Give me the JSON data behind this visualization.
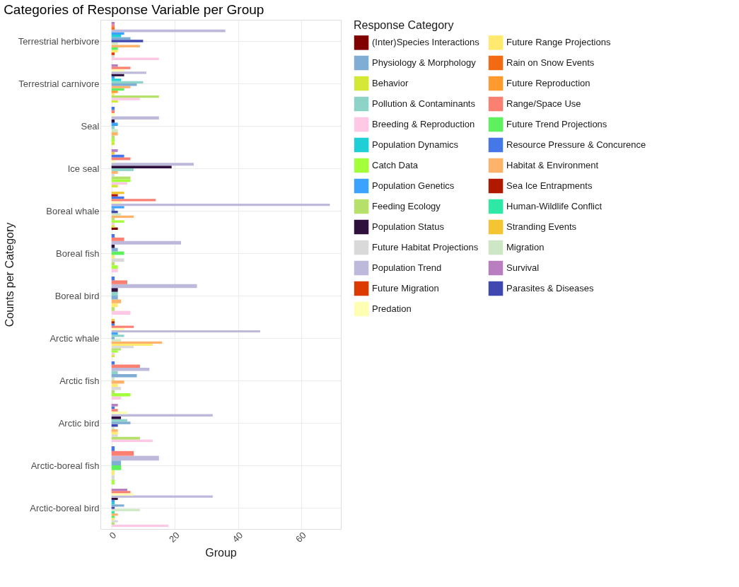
{
  "chart_data": {
    "type": "bar",
    "orientation": "horizontal",
    "title": "Categories of Response Variable per Group",
    "xlabel": "Group",
    "ylabel": "Counts per Category",
    "legend_title": "Response Category",
    "legend": "right",
    "grid": true,
    "xlim": [
      -3.5,
      72.5
    ],
    "xticks": [
      0,
      20,
      40,
      60
    ],
    "categories": [
      "Terrestrial herbivore",
      "Terrestrial carnivore",
      "Seal",
      "Ice seal",
      "Boreal whale",
      "Boreal fish",
      "Boreal bird",
      "Arctic whale",
      "Arctic fish",
      "Arctic bird",
      "Arctic-boreal fish",
      "Arctic-boreal bird"
    ],
    "series": [
      {
        "name": "(Inter)Species Interactions",
        "color": "#800000",
        "values": [
          null,
          null,
          null,
          null,
          2,
          null,
          null,
          null,
          null,
          null,
          null,
          null
        ]
      },
      {
        "name": "Behavior",
        "color": "#d4e836",
        "values": [
          null,
          2,
          1,
          2,
          1,
          null,
          null,
          1,
          null,
          null,
          null,
          null
        ]
      },
      {
        "name": "Breeding & Reproduction",
        "color": "#ffc8e4",
        "values": [
          15,
          9,
          null,
          5,
          1,
          2,
          6,
          1,
          3,
          13,
          null,
          18
        ]
      },
      {
        "name": "Catch Data",
        "color": "#a2ff3a",
        "values": [
          null,
          null,
          1,
          6,
          4,
          2,
          null,
          2,
          6,
          null,
          1,
          null
        ]
      },
      {
        "name": "Feeding Ecology",
        "color": "#b5e06a",
        "values": [
          null,
          15,
          1,
          6,
          1,
          1,
          1,
          3,
          1,
          9,
          null,
          1
        ]
      },
      {
        "name": "Future Habitat Projections",
        "color": "#d9d9d9",
        "values": [
          1,
          null,
          null,
          1,
          null,
          4,
          null,
          7,
          3,
          2,
          1,
          2
        ]
      },
      {
        "name": "Future Migration",
        "color": "#dd3a00",
        "values": [
          1,
          null,
          null,
          null,
          null,
          null,
          null,
          null,
          null,
          null,
          null,
          null
        ]
      },
      {
        "name": "Future Range Projections",
        "color": "#ffe96e",
        "values": [
          2,
          1,
          null,
          null,
          null,
          1,
          2,
          13,
          2,
          2,
          1,
          1
        ]
      },
      {
        "name": "Future Reproduction",
        "color": "#ff9a2e",
        "values": [
          null,
          2,
          null,
          null,
          null,
          null,
          null,
          null,
          null,
          null,
          null,
          null
        ]
      },
      {
        "name": "Future Trend Projections",
        "color": "#5ef05f",
        "values": [
          2,
          4,
          null,
          null,
          null,
          4,
          null,
          null,
          null,
          null,
          3,
          1
        ]
      },
      {
        "name": "Habitat & Environment",
        "color": "#ffb26a",
        "values": [
          9,
          6,
          2,
          2,
          7,
          null,
          3,
          16,
          4,
          2,
          null,
          2
        ]
      },
      {
        "name": "Human-Wildlife Conflict",
        "color": "#2ee8a6",
        "values": [
          null,
          null,
          null,
          null,
          null,
          null,
          null,
          null,
          null,
          null,
          null,
          1
        ]
      },
      {
        "name": "Migration",
        "color": "#cde7c4",
        "values": [
          2,
          null,
          2,
          null,
          3,
          null,
          null,
          3,
          1,
          1,
          null,
          9
        ]
      },
      {
        "name": "Parasites & Diseases",
        "color": "#3f48b0",
        "values": [
          10,
          null,
          null,
          null,
          2,
          null,
          null,
          null,
          null,
          2,
          null,
          1
        ]
      },
      {
        "name": "Physiology & Morphology",
        "color": "#7fadd3",
        "values": [
          6,
          8,
          null,
          null,
          1,
          2,
          2,
          1,
          8,
          6,
          3,
          4
        ]
      },
      {
        "name": "Pollution & Contaminants",
        "color": "#8dd3c7",
        "values": [
          null,
          10,
          1,
          7,
          null,
          null,
          2,
          4,
          2,
          5,
          null,
          null
        ]
      },
      {
        "name": "Population Dynamics",
        "color": "#1ed0d6",
        "values": [
          3,
          3,
          null,
          null,
          null,
          null,
          null,
          null,
          null,
          null,
          null,
          1
        ]
      },
      {
        "name": "Population Genetics",
        "color": "#3ba3ff",
        "values": [
          4,
          1,
          2,
          null,
          4,
          null,
          null,
          2,
          null,
          null,
          null,
          1
        ]
      },
      {
        "name": "Population Status",
        "color": "#2f0f3b",
        "values": [
          null,
          4,
          1,
          19,
          null,
          1,
          2,
          null,
          null,
          3,
          null,
          2
        ]
      },
      {
        "name": "Population Trend",
        "color": "#bdb9db",
        "values": [
          36,
          11,
          15,
          26,
          69,
          22,
          27,
          47,
          12,
          32,
          15,
          32
        ]
      },
      {
        "name": "Predation",
        "color": "#ffffb3",
        "values": [
          null,
          4,
          1,
          1,
          3,
          null,
          null,
          4,
          null,
          5,
          null,
          7
        ]
      },
      {
        "name": "Rain on Snow Events",
        "color": "#f26a14",
        "values": [
          1,
          null,
          null,
          null,
          null,
          null,
          null,
          null,
          null,
          null,
          null,
          null
        ]
      },
      {
        "name": "Range/Space Use",
        "color": "#fb8072",
        "values": [
          1,
          6,
          1,
          6,
          14,
          4,
          5,
          7,
          9,
          2,
          7,
          6
        ]
      },
      {
        "name": "Resource Pressure & Concurence",
        "color": "#4677e8",
        "values": [
          null,
          null,
          1,
          4,
          4,
          1,
          1,
          1,
          1,
          1,
          1,
          null
        ]
      },
      {
        "name": "Sea Ice Entrapments",
        "color": "#b01800",
        "values": [
          null,
          null,
          null,
          null,
          2,
          null,
          null,
          1,
          null,
          null,
          null,
          null
        ]
      },
      {
        "name": "Stranding Events",
        "color": "#f5c433",
        "values": [
          null,
          null,
          null,
          1,
          4,
          null,
          null,
          1,
          null,
          null,
          null,
          null
        ]
      },
      {
        "name": "Survival",
        "color": "#b97ec0",
        "values": [
          1,
          2,
          null,
          2,
          null,
          null,
          null,
          null,
          null,
          2,
          null,
          5
        ]
      }
    ]
  }
}
